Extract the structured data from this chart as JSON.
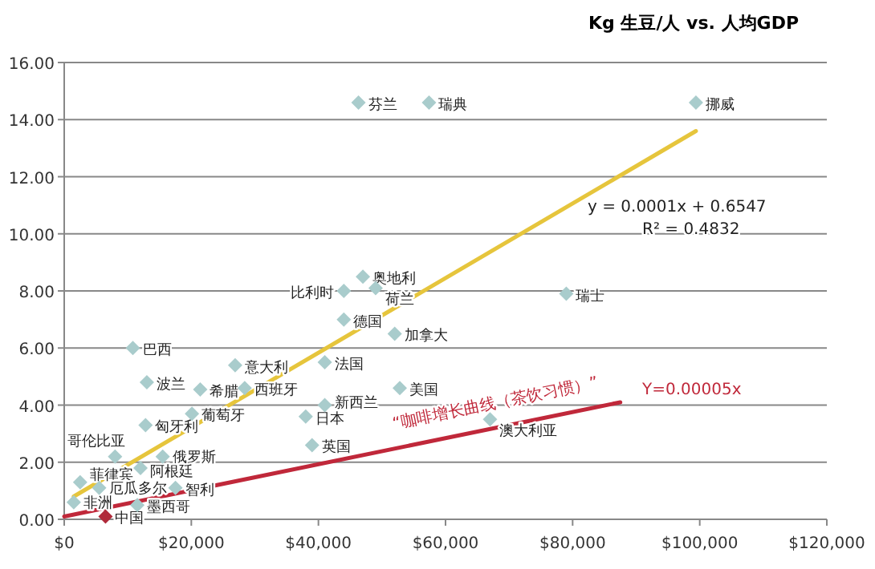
{
  "chart_data": {
    "type": "scatter",
    "title": "Kg 生豆/人 vs. 人均GDP",
    "xlim": [
      0,
      120000
    ],
    "ylim": [
      0,
      16
    ],
    "xticks": [
      {
        "value": 0,
        "label": "$0"
      },
      {
        "value": 20000,
        "label": "$20,000"
      },
      {
        "value": 40000,
        "label": "$40,000"
      },
      {
        "value": 60000,
        "label": "$60,000"
      },
      {
        "value": 80000,
        "label": "$80,000"
      },
      {
        "value": 100000,
        "label": "$100,000"
      },
      {
        "value": 120000,
        "label": "$120,000"
      }
    ],
    "yticks": [
      {
        "value": 0,
        "label": "0.00"
      },
      {
        "value": 2,
        "label": "2.00"
      },
      {
        "value": 4,
        "label": "4.00"
      },
      {
        "value": 6,
        "label": "6.00"
      },
      {
        "value": 8,
        "label": "8.00"
      },
      {
        "value": 10,
        "label": "10.00"
      },
      {
        "value": 12,
        "label": "12.00"
      },
      {
        "value": 14,
        "label": "14.00"
      },
      {
        "value": 16,
        "label": "16.00"
      }
    ],
    "grid": "y",
    "series": [
      {
        "marker": "diamond",
        "color": "#a9cccc",
        "x": [
          46300,
          57400,
          99400,
          10800,
          13000,
          21400,
          26900,
          28400,
          41000,
          52800,
          41000,
          38000,
          12800,
          20100,
          15500,
          39000,
          8000,
          2500,
          5500,
          12000,
          17500,
          11500,
          1500,
          44000,
          44000,
          47000,
          49000,
          79000,
          52000,
          67000
        ],
        "values": [
          14.6,
          14.6,
          14.6,
          6.0,
          4.8,
          4.55,
          5.4,
          4.6,
          5.5,
          4.6,
          4.0,
          3.6,
          3.3,
          3.7,
          2.2,
          2.6,
          2.2,
          1.3,
          1.1,
          1.8,
          1.1,
          0.5,
          0.6,
          8.0,
          7.0,
          8.5,
          8.1,
          7.9,
          6.5,
          3.5
        ]
      },
      {
        "marker": "diamond",
        "color": "#b02a3a",
        "x": [
          6500
        ],
        "values": [
          0.1
        ]
      },
      {
        "type": "line",
        "color": "#e6c53c",
        "x": [
          1500,
          99400
        ],
        "values": [
          0.8,
          13.6
        ]
      },
      {
        "type": "line",
        "color": "#c0283a",
        "x": [
          0,
          87500
        ],
        "values": [
          0.1,
          4.1
        ]
      }
    ],
    "annotations": [
      {
        "text": "芬兰",
        "x": 46300,
        "y": 14.6
      },
      {
        "text": "瑞典",
        "x": 57400,
        "y": 14.6
      },
      {
        "text": "挪威",
        "x": 99400,
        "y": 14.6
      },
      {
        "text": "巴西",
        "x": 10800,
        "y": 6.0
      },
      {
        "text": "波兰",
        "x": 13000,
        "y": 4.8
      },
      {
        "text": "希腊",
        "x": 21400,
        "y": 4.55
      },
      {
        "text": "意大利",
        "x": 26900,
        "y": 5.4
      },
      {
        "text": "西班牙",
        "x": 28400,
        "y": 4.6
      },
      {
        "text": "法国",
        "x": 41000,
        "y": 5.5
      },
      {
        "text": "美国",
        "x": 52800,
        "y": 4.6
      },
      {
        "text": "新西兰",
        "x": 41000,
        "y": 4.0
      },
      {
        "text": "日本",
        "x": 38000,
        "y": 3.6
      },
      {
        "text": "匈牙利",
        "x": 12800,
        "y": 3.3
      },
      {
        "text": "葡萄牙",
        "x": 20100,
        "y": 3.7
      },
      {
        "text": "俄罗斯",
        "x": 15500,
        "y": 2.2
      },
      {
        "text": "英国",
        "x": 39000,
        "y": 2.6
      },
      {
        "text": "哥伦比亚",
        "x": 8000,
        "y": 2.2
      },
      {
        "text": "菲律宾",
        "x": 2500,
        "y": 1.3
      },
      {
        "text": "厄瓜多尔",
        "x": 5500,
        "y": 1.1
      },
      {
        "text": "阿根廷",
        "x": 12000,
        "y": 1.8
      },
      {
        "text": "智利",
        "x": 17500,
        "y": 1.1
      },
      {
        "text": "墨西哥",
        "x": 11500,
        "y": 0.5
      },
      {
        "text": "非洲",
        "x": 1500,
        "y": 0.6
      },
      {
        "text": "中国",
        "x": 6500,
        "y": 0.1
      },
      {
        "text": "比利时",
        "x": 44000,
        "y": 8.0
      },
      {
        "text": "德国",
        "x": 44000,
        "y": 7.0
      },
      {
        "text": "奥地利",
        "x": 47000,
        "y": 8.5
      },
      {
        "text": "荷兰",
        "x": 49000,
        "y": 8.1
      },
      {
        "text": "瑞士",
        "x": 79000,
        "y": 7.9
      },
      {
        "text": "加拿大",
        "x": 52000,
        "y": 6.5
      },
      {
        "text": "澳大利亚",
        "x": 67000,
        "y": 3.5
      },
      {
        "text": "“咖啡增长曲线（茶饮习惯）”",
        "x": 68000,
        "y": 3.9
      },
      "y = 0.0001x + 0.6547",
      "R² = 0.4832",
      "Y=0.00005x"
    ]
  }
}
